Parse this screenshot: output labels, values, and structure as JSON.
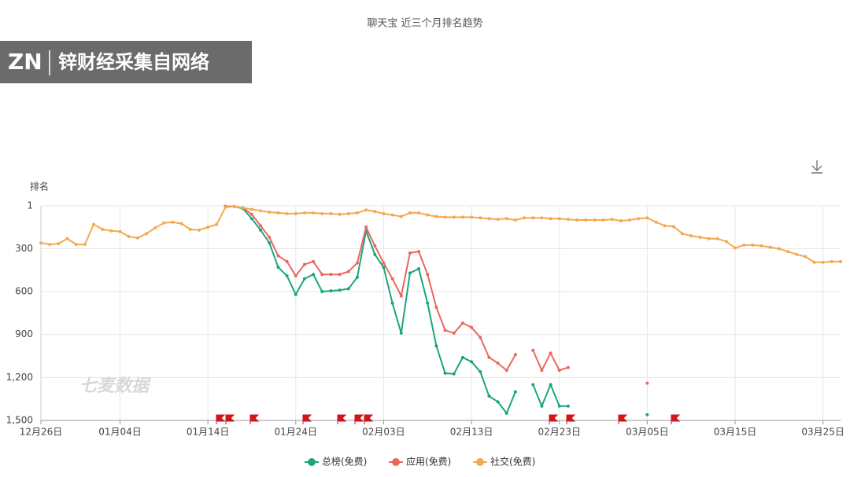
{
  "chart_data": {
    "type": "line",
    "title": "聊天宝 近三个月排名趋势",
    "y_label": "排名",
    "watermark": "七麦数据",
    "categories": [
      "12月26日",
      null,
      null,
      null,
      null,
      null,
      null,
      null,
      null,
      "01月04日",
      null,
      null,
      null,
      null,
      null,
      null,
      null,
      null,
      null,
      "01月14日",
      null,
      null,
      null,
      null,
      null,
      null,
      null,
      null,
      null,
      "01月24日",
      null,
      null,
      null,
      null,
      null,
      null,
      null,
      null,
      null,
      "02月03日",
      null,
      null,
      null,
      null,
      null,
      null,
      null,
      null,
      null,
      "02月13日",
      null,
      null,
      null,
      null,
      null,
      null,
      null,
      null,
      null,
      "02月23日",
      null,
      null,
      null,
      null,
      null,
      null,
      null,
      null,
      null,
      "03月05日",
      null,
      null,
      null,
      null,
      null,
      null,
      null,
      null,
      null,
      "03月15日",
      null,
      null,
      null,
      null,
      null,
      null,
      null,
      null,
      null,
      "03月25日",
      null,
      null
    ],
    "series": [
      {
        "name": "总榜(免费)",
        "color": "#1aa67a",
        "values": [
          null,
          null,
          null,
          null,
          null,
          null,
          null,
          null,
          null,
          null,
          null,
          null,
          null,
          null,
          null,
          null,
          null,
          null,
          null,
          null,
          null,
          5,
          5,
          20,
          90,
          170,
          260,
          430,
          490,
          620,
          510,
          480,
          600,
          595,
          590,
          580,
          500,
          175,
          340,
          430,
          680,
          890,
          470,
          440,
          680,
          980,
          1170,
          1175,
          1060,
          1090,
          1160,
          1330,
          1370,
          1450,
          1300,
          null,
          1250,
          1400,
          1250,
          1400,
          1400,
          null,
          null,
          null,
          null,
          null,
          null,
          null,
          null,
          1460,
          null,
          null,
          null,
          null,
          null,
          null,
          null,
          null,
          null,
          null,
          null,
          null,
          null,
          null,
          null,
          null,
          null,
          null,
          null,
          null,
          null,
          null
        ]
      },
      {
        "name": "应用(免费)",
        "color": "#e8685f",
        "values": [
          null,
          null,
          null,
          null,
          null,
          null,
          null,
          null,
          null,
          null,
          null,
          null,
          null,
          null,
          null,
          null,
          null,
          null,
          null,
          null,
          null,
          5,
          5,
          15,
          60,
          140,
          220,
          350,
          390,
          490,
          410,
          390,
          480,
          480,
          480,
          460,
          400,
          150,
          280,
          400,
          510,
          630,
          330,
          320,
          480,
          710,
          870,
          890,
          820,
          850,
          920,
          1060,
          1100,
          1150,
          1040,
          null,
          1010,
          1150,
          1030,
          1150,
          1130,
          null,
          null,
          null,
          null,
          null,
          null,
          null,
          null,
          1240,
          null,
          null,
          null,
          null,
          null,
          null,
          null,
          null,
          null,
          null,
          null,
          null,
          null,
          null,
          null,
          null,
          null,
          null,
          null,
          null,
          null,
          null
        ]
      },
      {
        "name": "社交(免费)",
        "color": "#f3a952",
        "values": [
          260,
          270,
          265,
          230,
          270,
          270,
          130,
          165,
          175,
          180,
          215,
          225,
          195,
          155,
          120,
          115,
          125,
          165,
          170,
          150,
          130,
          10,
          5,
          15,
          25,
          35,
          45,
          50,
          55,
          55,
          50,
          50,
          55,
          55,
          60,
          55,
          50,
          30,
          40,
          55,
          65,
          75,
          50,
          50,
          65,
          75,
          80,
          80,
          80,
          80,
          85,
          90,
          95,
          90,
          100,
          85,
          85,
          85,
          90,
          90,
          95,
          100,
          100,
          100,
          100,
          95,
          105,
          100,
          90,
          85,
          115,
          140,
          145,
          195,
          210,
          220,
          230,
          230,
          250,
          295,
          275,
          275,
          280,
          290,
          300,
          320,
          340,
          355,
          395,
          395,
          390,
          390
        ]
      }
    ],
    "ylim": [
      1500,
      1
    ],
    "yticks": [
      1,
      300,
      600,
      900,
      {
        "value": 1200,
        "label": "1,200"
      },
      {
        "value": 1500,
        "label": "1,500"
      }
    ],
    "grid": true,
    "legend": "bottom"
  },
  "overlay": {
    "logo": "ZN",
    "caption": "锌财经采集自网络"
  }
}
